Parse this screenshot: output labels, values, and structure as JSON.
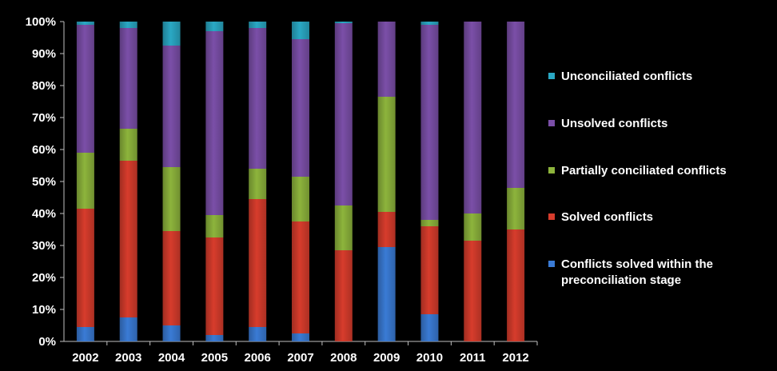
{
  "chart_data": {
    "type": "bar",
    "stacked": true,
    "percent_stacked": true,
    "categories": [
      "2002",
      "2003",
      "2004",
      "2005",
      "2006",
      "2007",
      "2008",
      "2009",
      "2010",
      "2011",
      "2012"
    ],
    "series": [
      {
        "name": "Conflicts solved within the preconciliation  stage",
        "color": "#3a7bd5",
        "values": [
          4.5,
          7.5,
          5,
          2,
          4.5,
          2.5,
          0,
          29.5,
          8.5,
          0,
          0
        ]
      },
      {
        "name": "Solved conflicts",
        "color": "#d73c2c",
        "values": [
          37,
          49,
          29.5,
          30.5,
          40,
          35,
          28.5,
          11,
          27.5,
          31.5,
          35
        ]
      },
      {
        "name": "Partially conciliated conflicts",
        "color": "#8db43c",
        "values": [
          17.5,
          10,
          20,
          7,
          9.5,
          14,
          14,
          36,
          2,
          8.5,
          13
        ]
      },
      {
        "name": " Unsolved conflicts",
        "color": "#7b4fa8",
        "values": [
          40,
          31.5,
          38,
          57.5,
          44,
          43,
          57,
          23.5,
          61,
          60,
          52
        ]
      },
      {
        "name": "Unconciliated conflicts",
        "color": "#2aa8c4",
        "values": [
          1,
          2,
          7.5,
          3,
          2,
          5.5,
          0.5,
          0,
          1,
          0,
          0
        ]
      }
    ],
    "ylim": [
      0,
      100
    ],
    "yticks": [
      "0%",
      "10%",
      "20%",
      "30%",
      "40%",
      "50%",
      "60%",
      "70%",
      "80%",
      "90%",
      "100%"
    ],
    "grid": false,
    "legend_position": "right",
    "legend_order": [
      "Unconciliated conflicts",
      " Unsolved conflicts",
      "Partially conciliated conflicts",
      "Solved conflicts",
      "Conflicts solved within the preconciliation  stage"
    ],
    "background": "#000000",
    "text_color": "#ffffff"
  }
}
